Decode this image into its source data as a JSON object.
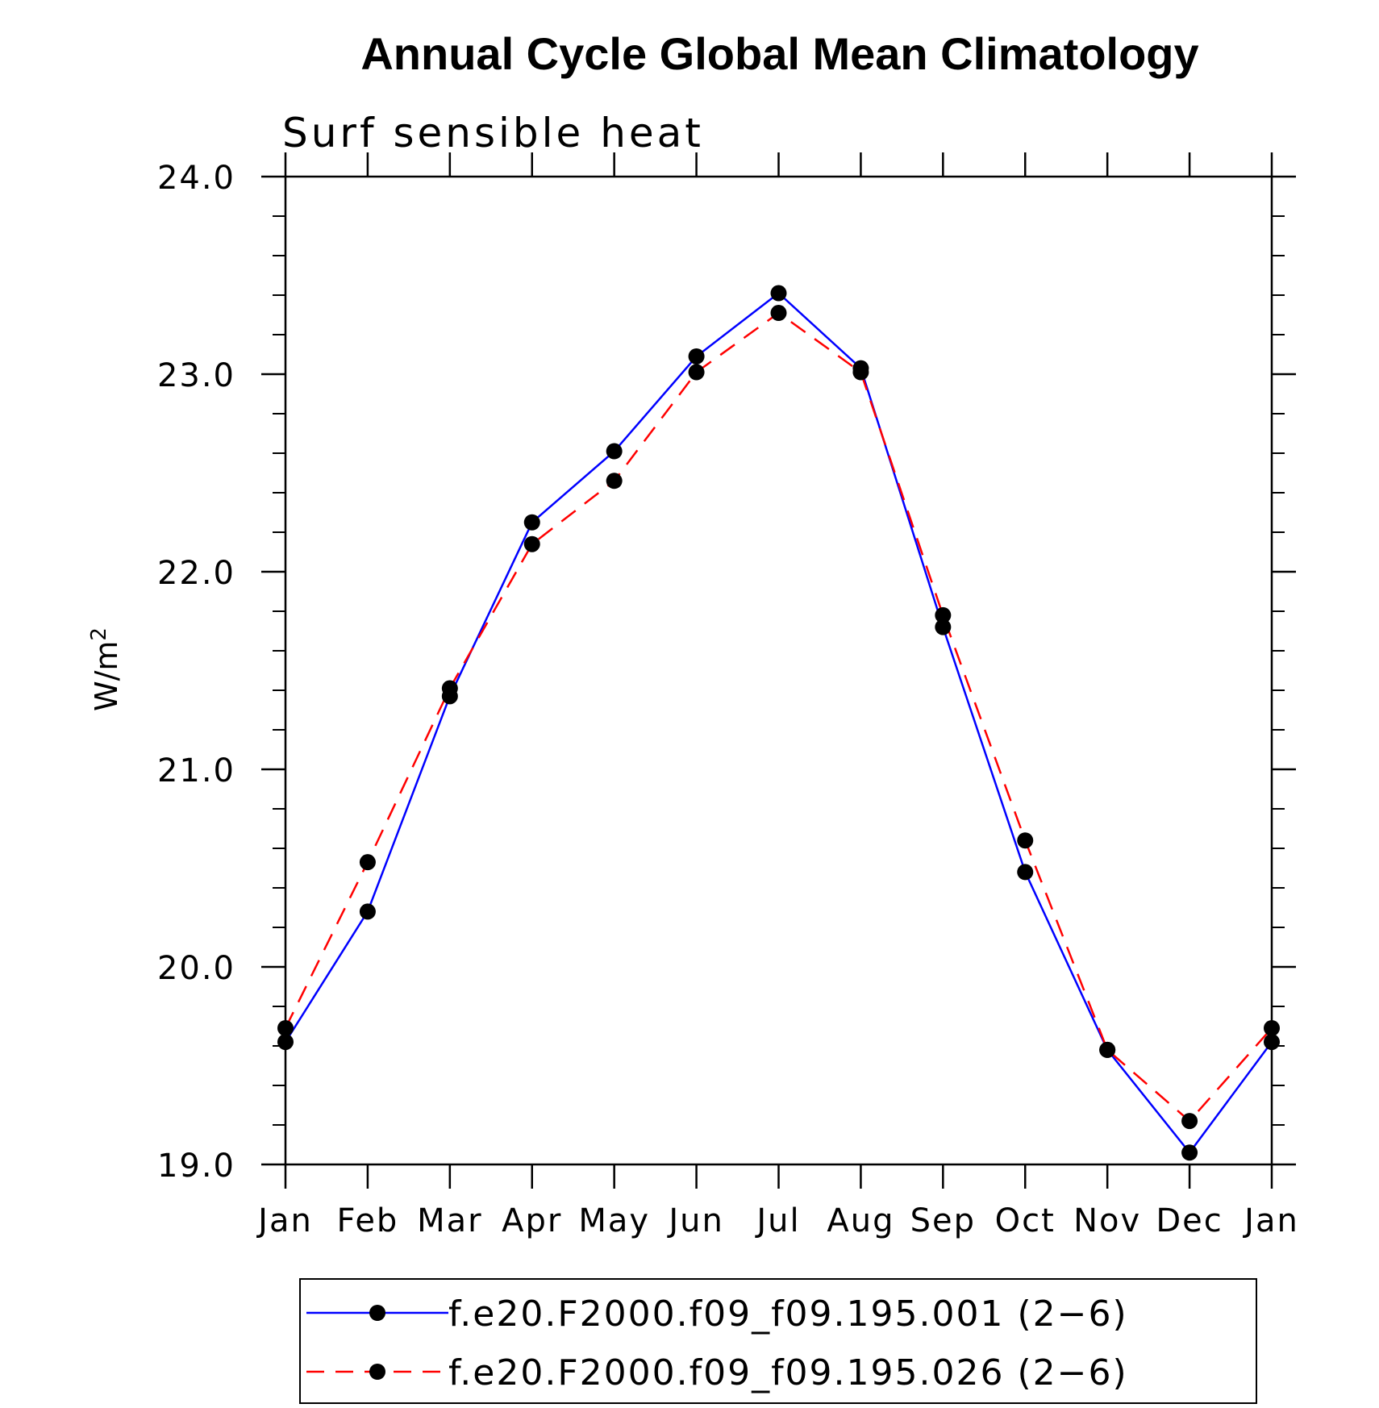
{
  "chart_data": {
    "type": "line",
    "title": "Annual Cycle Global Mean Climatology",
    "subtitle": "Surf sensible heat",
    "ylabel": "W/m",
    "ylabel_superscript": "2",
    "xlabel": "",
    "ylim": [
      19.0,
      24.0
    ],
    "yticks": [
      "19.0",
      "20.0",
      "21.0",
      "22.0",
      "23.0",
      "24.0"
    ],
    "categories": [
      "Jan",
      "Feb",
      "Mar",
      "Apr",
      "May",
      "Jun",
      "Jul",
      "Aug",
      "Sep",
      "Oct",
      "Nov",
      "Dec",
      "Jan"
    ],
    "series": [
      {
        "name": "f.e20.F2000.f09_f09.195.001 (2−6)",
        "color": "#0000ff",
        "dash": "solid",
        "values": [
          19.62,
          20.28,
          21.37,
          22.25,
          22.61,
          23.09,
          23.41,
          23.03,
          21.72,
          20.48,
          19.58,
          19.06,
          19.62
        ]
      },
      {
        "name": "f.e20.F2000.f09_f09.195.026 (2−6)",
        "color": "#ff0000",
        "dash": "dashed",
        "values": [
          19.69,
          20.53,
          21.41,
          22.14,
          22.46,
          23.01,
          23.31,
          23.01,
          21.78,
          20.64,
          19.58,
          19.22,
          19.69
        ]
      }
    ],
    "marker_color": "#000000",
    "legend_position": "bottom"
  }
}
